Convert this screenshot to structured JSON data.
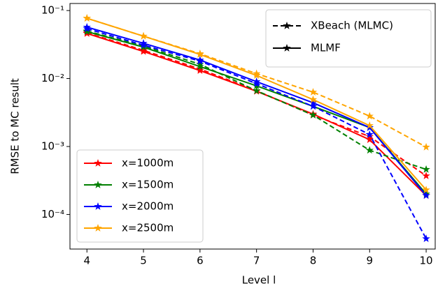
{
  "chart_data": {
    "type": "line",
    "x_label": "Level l",
    "y_label": "RMSE to MC result",
    "x": [
      4,
      5,
      6,
      7,
      8,
      9,
      10
    ],
    "xlim": [
      3.7,
      10.16
    ],
    "xticks": [
      4,
      5,
      6,
      7,
      8,
      9,
      10
    ],
    "ylim": [
      3.1e-05,
      0.127
    ],
    "log_y": true,
    "yticks": [
      {
        "value": 0.0001,
        "label": "10⁻⁴"
      },
      {
        "value": 0.001,
        "label": "10⁻³"
      },
      {
        "value": 0.01,
        "label": "10⁻²"
      },
      {
        "value": 0.1,
        "label": "10⁻¹"
      }
    ],
    "method_legend": [
      {
        "label": "XBeach (MLMC)",
        "dashed": true
      },
      {
        "label": "MLMF",
        "dashed": false
      }
    ],
    "method_legend_corner": "upper right",
    "legend_corner": "lower left",
    "series": [
      {
        "name": "x=1000m",
        "color": "#ff0000",
        "mlmc": [
          0.047,
          0.026,
          0.0138,
          0.0066,
          0.0029,
          0.0014,
          0.00037
        ],
        "mlmf": [
          0.046,
          0.025,
          0.0131,
          0.0065,
          0.003,
          0.00126,
          0.00019
        ]
      },
      {
        "name": "x=1500m",
        "color": "#008000",
        "mlmc": [
          0.05,
          0.03,
          0.0162,
          0.0066,
          0.0029,
          0.00088,
          0.00046
        ],
        "mlmf": [
          0.049,
          0.029,
          0.015,
          0.0078,
          0.0039,
          0.0019,
          0.0002
        ]
      },
      {
        "name": "x=2000m",
        "color": "#0000ff",
        "mlmc": [
          0.054,
          0.031,
          0.018,
          0.0084,
          0.0039,
          0.0015,
          4.4e-05
        ],
        "mlmf": [
          0.057,
          0.033,
          0.0187,
          0.009,
          0.0044,
          0.0019,
          0.00019
        ]
      },
      {
        "name": "x=2500m",
        "color": "#ffa500",
        "mlmc": [
          0.077,
          0.042,
          0.0232,
          0.0118,
          0.0063,
          0.0028,
          0.00098
        ],
        "mlmf": [
          0.077,
          0.042,
          0.0226,
          0.0111,
          0.0049,
          0.00203,
          0.00023
        ]
      }
    ]
  }
}
